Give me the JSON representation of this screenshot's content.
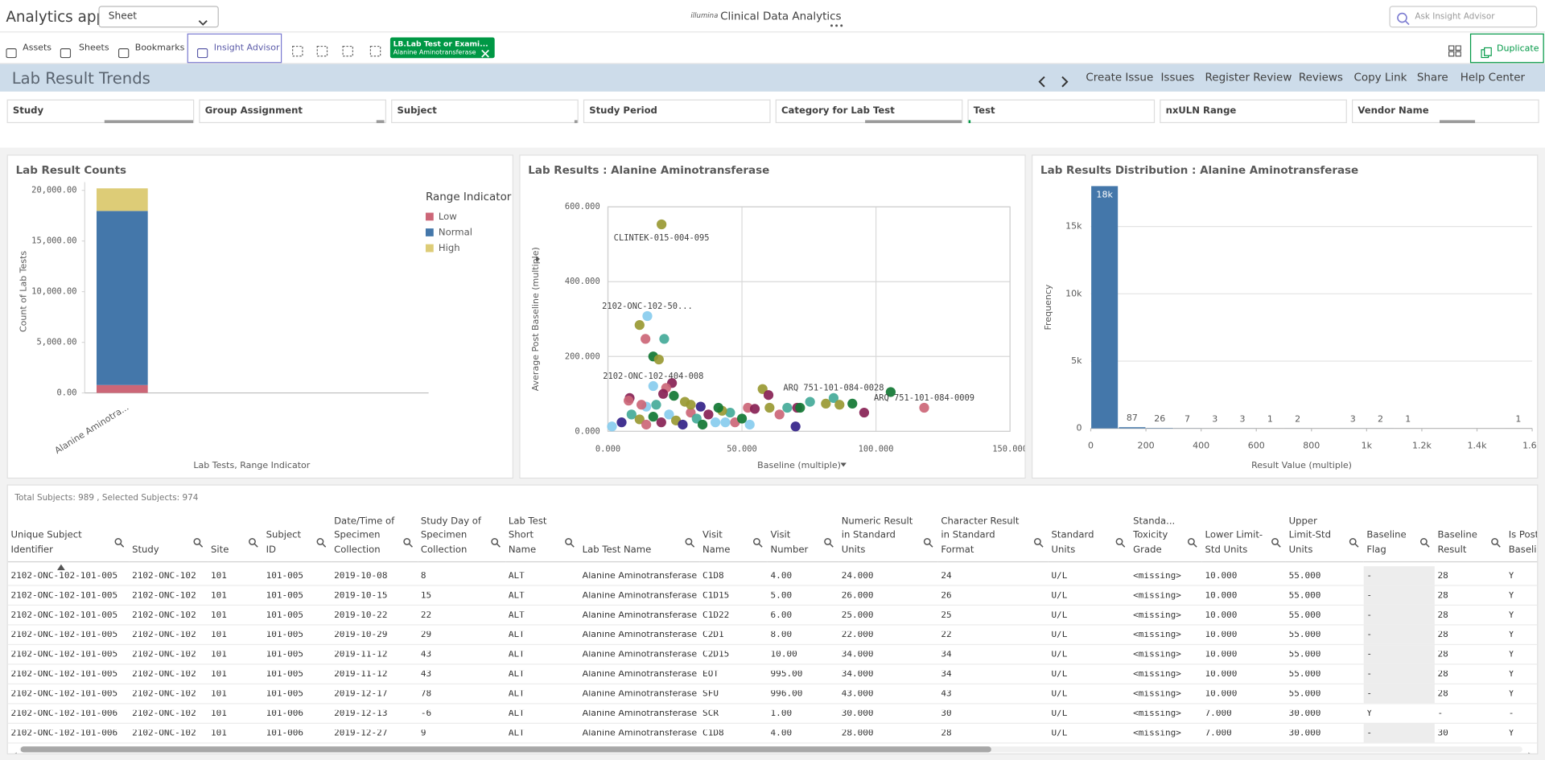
{
  "app": {
    "title": "Analytics app",
    "sheet_select": "Sheet",
    "brand": "illumina",
    "app_name": "Clinical Data Analytics",
    "search_placeholder": "Ask Insight Advisor"
  },
  "toolbar": {
    "buttons": [
      "Assets",
      "Sheets",
      "Bookmarks",
      "Insight Advisor"
    ],
    "selection": {
      "field": "LB.Lab Test or Exami...",
      "value": "Alanine Aminotransferase"
    },
    "duplicate": "Duplicate"
  },
  "sheet": {
    "title": "Lab Result Trends",
    "actions": [
      "Create Issue",
      "Issues",
      "Register Review",
      "Reviews",
      "Copy Link",
      "Share",
      "Help Center"
    ]
  },
  "filters": [
    "Study",
    "Group Assignment",
    "Subject",
    "Study Period",
    "Category for Lab Test",
    "Test",
    "nxULN Range",
    "Vendor Name"
  ],
  "chart_data": [
    {
      "type": "bar",
      "title": "Lab Result Counts",
      "x_label": "Lab Tests, Range Indicator",
      "y_label": "Count of Lab Tests",
      "legend_title": "Range Indicator",
      "legend": "right",
      "grid": false,
      "categories": [
        "Alanine Aminotra..."
      ],
      "series": [
        {
          "name": "Low",
          "color": "#cc6677",
          "values": [
            780
          ]
        },
        {
          "name": "Normal",
          "color": "#4477aa",
          "values": [
            17180
          ]
        },
        {
          "name": "High",
          "color": "#ddcc77",
          "values": [
            2230
          ]
        }
      ],
      "ylim": [
        0,
        20800
      ],
      "yticks": [
        {
          "value": 0,
          "label": "0.00"
        },
        {
          "value": 5000,
          "label": "5,000.00"
        },
        {
          "value": 10000,
          "label": "10,000.00"
        },
        {
          "value": 15000,
          "label": "15,000.00"
        },
        {
          "value": 20000,
          "label": "20,000.00"
        }
      ]
    },
    {
      "type": "scatter",
      "title": "Lab Results : Alanine Aminotransferase",
      "x_label": "Baseline (multiple)",
      "y_label": "Average Post Baseline (multiple)",
      "grid": true,
      "xlim": [
        0,
        150
      ],
      "xticks": [
        {
          "value": 0,
          "label": "0.000"
        },
        {
          "value": 50,
          "label": "50.000"
        },
        {
          "value": 100,
          "label": "100.000"
        },
        {
          "value": 150,
          "label": "150.000"
        }
      ],
      "ylim": [
        0,
        600
      ],
      "yticks": [
        {
          "value": 0,
          "label": "0.000"
        },
        {
          "value": 200,
          "label": "200.000"
        },
        {
          "value": 400,
          "label": "400.000"
        },
        {
          "value": 600,
          "label": "600.000"
        }
      ],
      "x": [
        20,
        14.7,
        11.8,
        14,
        21,
        16.9,
        19,
        16.9,
        23.9,
        21.7,
        20.6,
        24.6,
        8.1,
        7.7,
        14.3,
        18,
        28.7,
        57.7,
        59.9,
        70.6,
        71.7,
        75.4,
        81.3,
        84.2,
        86.4,
        91.2,
        95.6,
        105.5,
        118,
        70,
        60.3,
        52.2,
        45.6,
        1.5,
        5.1,
        8.8,
        11.8,
        14.3,
        16.9,
        19.9,
        22.8,
        25.4,
        27.9,
        30.9,
        33.1,
        35.3,
        37.5,
        40.1,
        42.6,
        47.4,
        50,
        52.9,
        54.8,
        64,
        66.9,
        12.5,
        30.9,
        34.6,
        41.2,
        43.8
      ],
      "y": [
        553,
        308,
        284,
        247,
        247,
        200,
        192,
        121,
        129,
        116,
        100,
        95,
        89,
        82,
        66,
        71,
        79,
        113,
        97,
        63,
        63,
        79,
        74,
        89,
        71,
        74,
        50,
        105,
        63,
        13,
        63,
        63,
        50,
        13,
        24,
        45,
        32,
        18,
        39,
        24,
        45,
        29,
        18,
        50,
        34,
        18,
        45,
        24,
        55,
        24,
        34,
        18,
        60,
        45,
        63,
        71,
        71,
        66,
        63,
        24
      ],
      "colors": [
        "#999933",
        "#88ccee",
        "#999933",
        "#cc6677",
        "#44aa99",
        "#117733",
        "#999933",
        "#88ccee",
        "#882255",
        "#cc6677",
        "#882255",
        "#117733",
        "#882255",
        "#cc6677",
        "#88ccee",
        "#44aa99",
        "#999933",
        "#999933",
        "#882255",
        "#882255",
        "#117733",
        "#44aa99",
        "#999933",
        "#44aa99",
        "#999933",
        "#117733",
        "#882255",
        "#117733",
        "#cc6677",
        "#332288",
        "#999933",
        "#cc6677",
        "#44aa99",
        "#88ccee",
        "#332288",
        "#44aa99",
        "#999933",
        "#cc6677",
        "#117733",
        "#882255",
        "#88ccee",
        "#999933",
        "#332288",
        "#cc6677",
        "#44aa99",
        "#117733",
        "#882255",
        "#88ccee",
        "#999933",
        "#cc6677",
        "#117733",
        "#88ccee",
        "#882255",
        "#cc6677",
        "#44aa99",
        "#cc6677",
        "#999933",
        "#332288",
        "#117733",
        "#88ccee"
      ],
      "point_labels": [
        "CLINTEK-015-004-095",
        "2102-ONC-102-50...",
        null,
        null,
        null,
        null,
        null,
        "2102-ONC-102-404-008",
        null,
        null,
        null,
        null,
        null,
        null,
        null,
        null,
        null,
        null,
        null,
        null,
        null,
        null,
        null,
        "ARQ 751-101-084-0028",
        null,
        null,
        null,
        null,
        "ARQ 751-101-084-0009",
        null,
        null,
        null,
        null,
        null,
        null,
        null,
        null,
        null,
        null,
        null,
        null,
        null,
        null,
        null,
        null,
        null,
        null,
        null,
        null,
        null,
        null,
        null,
        null,
        null,
        null,
        null,
        null,
        null,
        null,
        null
      ]
    },
    {
      "type": "histogram",
      "title": "Lab Results Distribution : Alanine Aminotransferase",
      "x_label": "Result Value (multiple)",
      "y_label": "Frequency",
      "grid": true,
      "color": "#4477aa",
      "bins": [
        0,
        100,
        200,
        300,
        400,
        500,
        600,
        700,
        800,
        900,
        1000,
        1100,
        1200,
        1300,
        1400,
        1500,
        1600
      ],
      "values": [
        18000,
        87,
        26,
        7,
        3,
        3,
        1,
        2,
        0,
        3,
        2,
        1,
        0,
        0,
        0,
        1
      ],
      "value_labels": [
        "18k",
        "87",
        "26",
        "7",
        "3",
        "3",
        "1",
        "2",
        null,
        "3",
        "2",
        "1",
        null,
        null,
        null,
        "1"
      ],
      "xlim": [
        0,
        1600
      ],
      "xticks": [
        0,
        200,
        400,
        600,
        800,
        {
          "value": 1000,
          "label": "1k"
        },
        {
          "value": 1200,
          "label": "1.2k"
        },
        {
          "value": 1400,
          "label": "1.4k"
        },
        {
          "value": 1600,
          "label": "1.6k"
        }
      ],
      "ylim": [
        0,
        18000
      ],
      "yticks": [
        0,
        {
          "value": 5000,
          "label": "5k"
        },
        {
          "value": 10000,
          "label": "10k"
        },
        {
          "value": 15000,
          "label": "15k"
        }
      ]
    }
  ],
  "summary": "Total Subjects: 989 , Selected Subjects: 974",
  "table": {
    "columns": [
      "Unique Subject Identifier",
      "Study",
      "Site",
      "Subject ID",
      "Date/Time of Specimen Collection",
      "Study Day of Specimen Collection",
      "Lab Test Short Name",
      "Lab Test Name",
      "Visit Name",
      "Visit Number",
      "Numeric Result in Standard Units",
      "Character Result in Standard Format",
      "Standard Units",
      "Standa... Toxicity Grade",
      "Lower Limit-Std Units",
      "Upper Limit-Std Units",
      "Baseline Flag",
      "Baseline Result",
      "Is Post Baseline"
    ],
    "rows": [
      [
        "2102-ONC-102-101-005",
        "2102-ONC-102",
        "101",
        "101-005",
        "2019-10-08",
        "8",
        "ALT",
        "Alanine Aminotransferase",
        "C1D8",
        "4.00",
        "24.000",
        "24",
        "U/L",
        "<missing>",
        "10.000",
        "55.000",
        "-",
        "28",
        "Y"
      ],
      [
        "2102-ONC-102-101-005",
        "2102-ONC-102",
        "101",
        "101-005",
        "2019-10-15",
        "15",
        "ALT",
        "Alanine Aminotransferase",
        "C1D15",
        "5.00",
        "26.000",
        "26",
        "U/L",
        "<missing>",
        "10.000",
        "55.000",
        "-",
        "28",
        "Y"
      ],
      [
        "2102-ONC-102-101-005",
        "2102-ONC-102",
        "101",
        "101-005",
        "2019-10-22",
        "22",
        "ALT",
        "Alanine Aminotransferase",
        "C1D22",
        "6.00",
        "25.000",
        "25",
        "U/L",
        "<missing>",
        "10.000",
        "55.000",
        "-",
        "28",
        "Y"
      ],
      [
        "2102-ONC-102-101-005",
        "2102-ONC-102",
        "101",
        "101-005",
        "2019-10-29",
        "29",
        "ALT",
        "Alanine Aminotransferase",
        "C2D1",
        "8.00",
        "22.000",
        "22",
        "U/L",
        "<missing>",
        "10.000",
        "55.000",
        "-",
        "28",
        "Y"
      ],
      [
        "2102-ONC-102-101-005",
        "2102-ONC-102",
        "101",
        "101-005",
        "2019-11-12",
        "43",
        "ALT",
        "Alanine Aminotransferase",
        "C2D15",
        "10.00",
        "34.000",
        "34",
        "U/L",
        "<missing>",
        "10.000",
        "55.000",
        "-",
        "28",
        "Y"
      ],
      [
        "2102-ONC-102-101-005",
        "2102-ONC-102",
        "101",
        "101-005",
        "2019-11-12",
        "43",
        "ALT",
        "Alanine Aminotransferase",
        "EOT",
        "995.00",
        "34.000",
        "34",
        "U/L",
        "<missing>",
        "10.000",
        "55.000",
        "-",
        "28",
        "Y"
      ],
      [
        "2102-ONC-102-101-005",
        "2102-ONC-102",
        "101",
        "101-005",
        "2019-12-17",
        "78",
        "ALT",
        "Alanine Aminotransferase",
        "SFU",
        "996.00",
        "43.000",
        "43",
        "U/L",
        "<missing>",
        "10.000",
        "55.000",
        "-",
        "28",
        "Y"
      ],
      [
        "2102-ONC-102-101-006",
        "2102-ONC-102",
        "101",
        "101-006",
        "2019-12-13",
        "-6",
        "ALT",
        "Alanine Aminotransferase",
        "SCR",
        "1.00",
        "30.000",
        "30",
        "U/L",
        "<missing>",
        "7.000",
        "30.000",
        "Y",
        "-",
        "-"
      ],
      [
        "2102-ONC-102-101-006",
        "2102-ONC-102",
        "101",
        "101-006",
        "2019-12-27",
        "9",
        "ALT",
        "Alanine Aminotransferase",
        "C1D8",
        "4.00",
        "28.000",
        "28",
        "U/L",
        "<missing>",
        "7.000",
        "30.000",
        "-",
        "30",
        "Y"
      ]
    ]
  }
}
